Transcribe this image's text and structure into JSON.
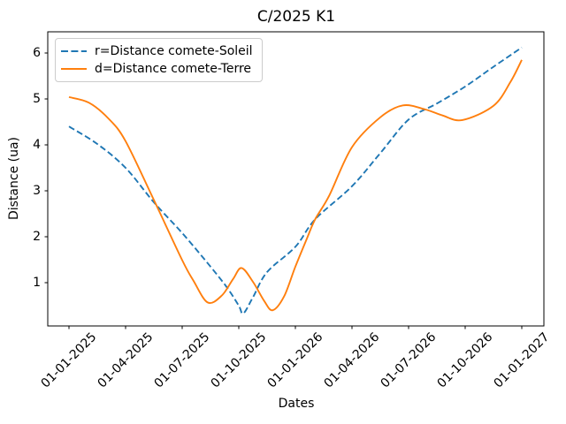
{
  "figure": {
    "title": "C/2025 K1",
    "xlabel": "Dates",
    "ylabel": "Distance (ua)",
    "background": "#ffffff"
  },
  "legend": {
    "position": "upper left",
    "items": [
      {
        "label": "r=Distance comete-Soleil",
        "color": "#1f77b4",
        "line_style": "dashed"
      },
      {
        "label": "d=Distance comete-Terre",
        "color": "#ff7f0e",
        "line_style": "solid"
      }
    ]
  },
  "chart_data": {
    "type": "line",
    "title": "C/2025 K1",
    "xlabel": "Dates",
    "ylabel": "Distance (ua)",
    "grid": false,
    "legend_position": "upper left",
    "x_tick_labels": [
      "01-01-2025",
      "01-04-2025",
      "01-07-2025",
      "01-10-2025",
      "01-01-2026",
      "01-04-2026",
      "01-07-2026",
      "01-10-2026",
      "01-01-2027"
    ],
    "x_tick_rotation_deg": 45,
    "y_ticks": [
      1,
      2,
      3,
      4,
      5,
      6
    ],
    "ylim": [
      0.05,
      6.45
    ],
    "xlim_in_tick_units": [
      -0.375,
      8.39
    ],
    "series": [
      {
        "name": "r=Distance comete-Soleil",
        "color": "#1f77b4",
        "dashed": true,
        "points": [
          {
            "date": "01-01-2025",
            "t": 0.0,
            "v": 4.4
          },
          {
            "date": "15-02-2025",
            "t": 0.5,
            "v": 4.02
          },
          {
            "date": "01-04-2025",
            "t": 1.0,
            "v": 3.5
          },
          {
            "date": "16-05-2025",
            "t": 1.5,
            "v": 2.75
          },
          {
            "date": "01-07-2025",
            "t": 2.0,
            "v": 2.08
          },
          {
            "date": "16-08-2025",
            "t": 2.5,
            "v": 1.35
          },
          {
            "date": "12-09-2025",
            "t": 2.8,
            "v": 0.88
          },
          {
            "date": "01-10-2025",
            "t": 3.0,
            "v": 0.5
          },
          {
            "date": "08-10-2025",
            "t": 3.08,
            "v": 0.33
          },
          {
            "date": "24-10-2025",
            "t": 3.25,
            "v": 0.68
          },
          {
            "date": "16-11-2025",
            "t": 3.5,
            "v": 1.23
          },
          {
            "date": "01-01-2026",
            "t": 4.0,
            "v": 1.78
          },
          {
            "date": "02-02-2026",
            "t": 4.35,
            "v": 2.38
          },
          {
            "date": "01-04-2026",
            "t": 5.0,
            "v": 3.1
          },
          {
            "date": "16-05-2026",
            "t": 5.5,
            "v": 3.82
          },
          {
            "date": "01-07-2026",
            "t": 6.0,
            "v": 4.55
          },
          {
            "date": "16-08-2026",
            "t": 6.5,
            "v": 4.9
          },
          {
            "date": "01-10-2026",
            "t": 7.0,
            "v": 5.27
          },
          {
            "date": "16-11-2026",
            "t": 7.5,
            "v": 5.7
          },
          {
            "date": "01-01-2027",
            "t": 8.0,
            "v": 6.12
          }
        ]
      },
      {
        "name": "d=Distance comete-Terre",
        "color": "#ff7f0e",
        "dashed": false,
        "points": [
          {
            "date": "01-01-2025",
            "t": 0.0,
            "v": 5.04
          },
          {
            "date": "02-02-2025",
            "t": 0.35,
            "v": 4.92
          },
          {
            "date": "05-03-2025",
            "t": 0.7,
            "v": 4.57
          },
          {
            "date": "01-04-2025",
            "t": 1.0,
            "v": 4.08
          },
          {
            "date": "16-05-2025",
            "t": 1.5,
            "v": 2.8
          },
          {
            "date": "01-07-2025",
            "t": 2.0,
            "v": 1.49
          },
          {
            "date": "19-07-2025",
            "t": 2.2,
            "v": 1.04
          },
          {
            "date": "11-08-2025",
            "t": 2.45,
            "v": 0.57
          },
          {
            "date": "03-09-2025",
            "t": 2.7,
            "v": 0.72
          },
          {
            "date": "21-09-2025",
            "t": 2.9,
            "v": 1.08
          },
          {
            "date": "05-10-2025",
            "t": 3.05,
            "v": 1.32
          },
          {
            "date": "24-10-2025",
            "t": 3.25,
            "v": 1.02
          },
          {
            "date": "11-11-2025",
            "t": 3.45,
            "v": 0.6
          },
          {
            "date": "25-11-2025",
            "t": 3.6,
            "v": 0.4
          },
          {
            "date": "09-12-2025",
            "t": 3.8,
            "v": 0.7
          },
          {
            "date": "01-01-2026",
            "t": 4.0,
            "v": 1.35
          },
          {
            "date": "19-01-2026",
            "t": 4.2,
            "v": 1.95
          },
          {
            "date": "02-02-2026",
            "t": 4.35,
            "v": 2.38
          },
          {
            "date": "25-02-2026",
            "t": 4.6,
            "v": 2.9
          },
          {
            "date": "01-04-2026",
            "t": 5.0,
            "v": 3.95
          },
          {
            "date": "16-05-2026",
            "t": 5.5,
            "v": 4.6
          },
          {
            "date": "22-06-2026",
            "t": 5.9,
            "v": 4.86
          },
          {
            "date": "28-07-2026",
            "t": 6.3,
            "v": 4.77
          },
          {
            "date": "25-08-2026",
            "t": 6.6,
            "v": 4.64
          },
          {
            "date": "27-09-2026",
            "t": 6.95,
            "v": 4.54
          },
          {
            "date": "16-11-2026",
            "t": 7.5,
            "v": 4.85
          },
          {
            "date": "13-12-2026",
            "t": 7.8,
            "v": 5.37
          },
          {
            "date": "01-01-2027",
            "t": 8.0,
            "v": 5.85
          }
        ]
      }
    ]
  }
}
